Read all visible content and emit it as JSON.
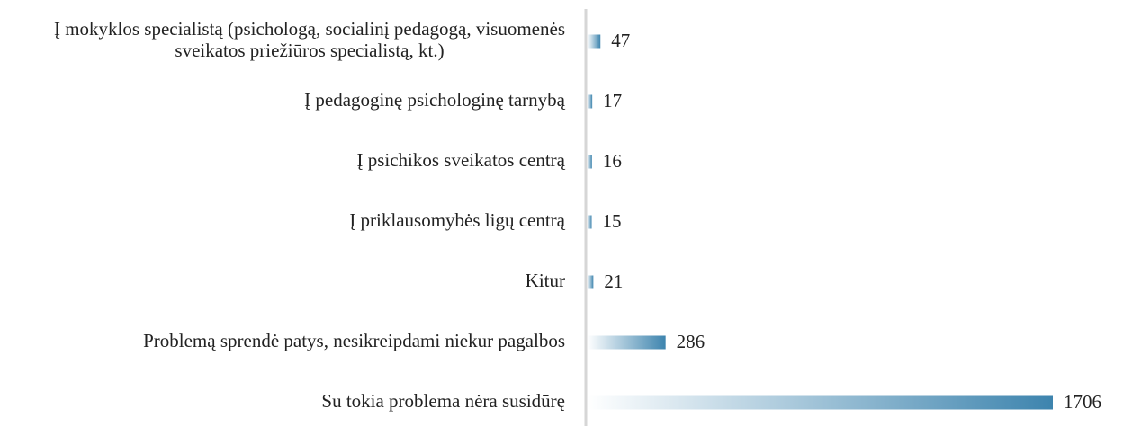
{
  "chart_data": {
    "type": "barh",
    "categories": [
      "Į mokyklos specialistą (psichologą, socialinį pedagogą, visuomenės sveikatos priežiūros specialistą, kt.)",
      "Į pedagoginę psichologinę tarnybą",
      "Į psichikos sveikatos centrą",
      "Į priklausomybės ligų centrą",
      "Kitur",
      "Problemą sprendė patys, nesikreipdami niekur pagalbos",
      "Su tokia problema nėra susidūrę"
    ],
    "values": [
      47,
      17,
      16,
      15,
      21,
      286,
      1706
    ],
    "color": "#3d84ae"
  }
}
